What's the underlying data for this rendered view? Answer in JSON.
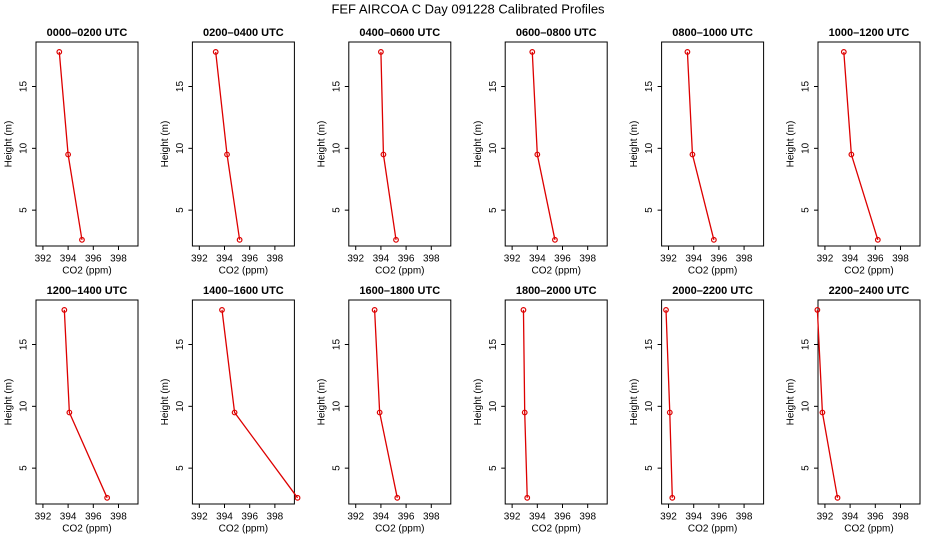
{
  "title": "FEF AIRCOA C  Day 091228  Calibrated Profiles",
  "chart_data": [
    {
      "type": "line",
      "title": "0000–0200 UTC",
      "xlabel": "CO2 (ppm)",
      "ylabel": "Height (m)",
      "x": [
        395.1,
        394.0,
        393.3
      ],
      "values": [
        2.6,
        9.5,
        17.8
      ],
      "color": "#dd0000",
      "xlim": [
        391.45,
        399.55
      ],
      "ylim": [
        2.1,
        18.6
      ],
      "xticks": [
        392,
        394,
        396,
        398
      ],
      "yticks": [
        5,
        10,
        15
      ]
    },
    {
      "type": "line",
      "title": "0200–0400 UTC",
      "xlabel": "CO2 (ppm)",
      "ylabel": "Height (m)",
      "x": [
        395.2,
        394.2,
        393.3
      ],
      "values": [
        2.6,
        9.5,
        17.8
      ],
      "color": "#dd0000",
      "xlim": [
        391.45,
        399.55
      ],
      "ylim": [
        2.1,
        18.6
      ],
      "xticks": [
        392,
        394,
        396,
        398
      ],
      "yticks": [
        5,
        10,
        15
      ]
    },
    {
      "type": "line",
      "title": "0400–0600 UTC",
      "xlabel": "CO2 (ppm)",
      "ylabel": "Height (m)",
      "x": [
        395.2,
        394.2,
        394.0
      ],
      "values": [
        2.6,
        9.5,
        17.8
      ],
      "color": "#dd0000",
      "xlim": [
        391.45,
        399.55
      ],
      "ylim": [
        2.1,
        18.6
      ],
      "xticks": [
        392,
        394,
        396,
        398
      ],
      "yticks": [
        5,
        10,
        15
      ]
    },
    {
      "type": "line",
      "title": "0600–0800 UTC",
      "xlabel": "CO2 (ppm)",
      "ylabel": "Height (m)",
      "x": [
        395.4,
        394.0,
        393.6
      ],
      "values": [
        2.6,
        9.5,
        17.8
      ],
      "color": "#dd0000",
      "xlim": [
        391.45,
        399.55
      ],
      "ylim": [
        2.1,
        18.6
      ],
      "xticks": [
        392,
        394,
        396,
        398
      ],
      "yticks": [
        5,
        10,
        15
      ]
    },
    {
      "type": "line",
      "title": "0800–1000 UTC",
      "xlabel": "CO2 (ppm)",
      "ylabel": "Height (m)",
      "x": [
        395.6,
        393.9,
        393.5
      ],
      "values": [
        2.6,
        9.5,
        17.8
      ],
      "color": "#dd0000",
      "xlim": [
        391.45,
        399.55
      ],
      "ylim": [
        2.1,
        18.6
      ],
      "xticks": [
        392,
        394,
        396,
        398
      ],
      "yticks": [
        5,
        10,
        15
      ]
    },
    {
      "type": "line",
      "title": "1000–1200 UTC",
      "xlabel": "CO2 (ppm)",
      "ylabel": "Height (m)",
      "x": [
        396.2,
        394.1,
        393.5
      ],
      "values": [
        2.6,
        9.5,
        17.8
      ],
      "color": "#dd0000",
      "xlim": [
        391.45,
        399.55
      ],
      "ylim": [
        2.1,
        18.6
      ],
      "xticks": [
        392,
        394,
        396,
        398
      ],
      "yticks": [
        5,
        10,
        15
      ]
    },
    {
      "type": "line",
      "title": "1200–1400 UTC",
      "xlabel": "CO2 (ppm)",
      "ylabel": "Height (m)",
      "x": [
        397.1,
        394.1,
        393.7
      ],
      "values": [
        2.6,
        9.5,
        17.8
      ],
      "color": "#dd0000",
      "xlim": [
        391.45,
        399.55
      ],
      "ylim": [
        2.1,
        18.6
      ],
      "xticks": [
        392,
        394,
        396,
        398
      ],
      "yticks": [
        5,
        10,
        15
      ]
    },
    {
      "type": "line",
      "title": "1400–1600 UTC",
      "xlabel": "CO2 (ppm)",
      "ylabel": "Height (m)",
      "x": [
        399.8,
        394.8,
        393.8
      ],
      "values": [
        2.6,
        9.5,
        17.8
      ],
      "color": "#dd0000",
      "xlim": [
        391.45,
        399.55
      ],
      "ylim": [
        2.1,
        18.6
      ],
      "xticks": [
        392,
        394,
        396,
        398
      ],
      "yticks": [
        5,
        10,
        15
      ]
    },
    {
      "type": "line",
      "title": "1600–1800 UTC",
      "xlabel": "CO2 (ppm)",
      "ylabel": "Height (m)",
      "x": [
        395.3,
        393.9,
        393.5
      ],
      "values": [
        2.6,
        9.5,
        17.8
      ],
      "color": "#dd0000",
      "xlim": [
        391.45,
        399.55
      ],
      "ylim": [
        2.1,
        18.6
      ],
      "xticks": [
        392,
        394,
        396,
        398
      ],
      "yticks": [
        5,
        10,
        15
      ]
    },
    {
      "type": "line",
      "title": "1800–2000 UTC",
      "xlabel": "CO2 (ppm)",
      "ylabel": "Height (m)",
      "x": [
        393.2,
        393.0,
        392.9
      ],
      "values": [
        2.6,
        9.5,
        17.8
      ],
      "color": "#dd0000",
      "xlim": [
        391.45,
        399.55
      ],
      "ylim": [
        2.1,
        18.6
      ],
      "xticks": [
        392,
        394,
        396,
        398
      ],
      "yticks": [
        5,
        10,
        15
      ]
    },
    {
      "type": "line",
      "title": "2000–2200 UTC",
      "xlabel": "CO2 (ppm)",
      "ylabel": "Height (m)",
      "x": [
        392.3,
        392.1,
        391.8
      ],
      "values": [
        2.6,
        9.5,
        17.8
      ],
      "color": "#dd0000",
      "xlim": [
        391.45,
        399.55
      ],
      "ylim": [
        2.1,
        18.6
      ],
      "xticks": [
        392,
        394,
        396,
        398
      ],
      "yticks": [
        5,
        10,
        15
      ]
    },
    {
      "type": "line",
      "title": "2200–2400 UTC",
      "xlabel": "CO2 (ppm)",
      "ylabel": "Height (m)",
      "x": [
        393.0,
        391.8,
        391.4
      ],
      "values": [
        2.6,
        9.5,
        17.8
      ],
      "color": "#dd0000",
      "xlim": [
        391.45,
        399.55
      ],
      "ylim": [
        2.1,
        18.6
      ],
      "xticks": [
        392,
        394,
        396,
        398
      ],
      "yticks": [
        5,
        10,
        15
      ]
    }
  ]
}
